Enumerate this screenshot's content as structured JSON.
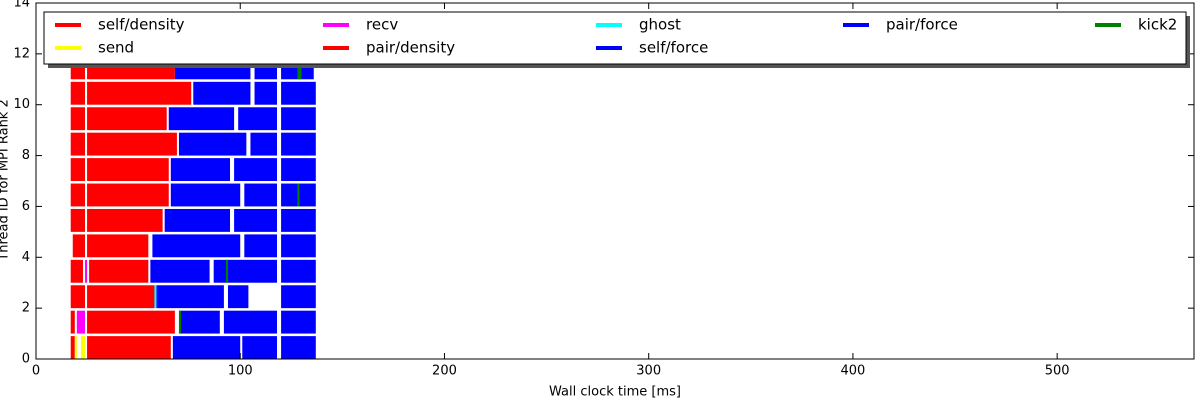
{
  "chart_data": {
    "type": "timeline",
    "xlabel": "Wall clock time [ms]",
    "ylabel": "Thread ID for MPI Rank 2",
    "xlim": [
      0,
      567
    ],
    "ylim": [
      0,
      14
    ],
    "xticks": [
      0,
      100,
      200,
      300,
      400,
      500
    ],
    "yticks": [
      0,
      2,
      4,
      6,
      8,
      10,
      12,
      14
    ],
    "legend": "upper center",
    "series": [
      {
        "name": "self/density",
        "color": "#ff0000",
        "thread": [
          0,
          1,
          2,
          3,
          4,
          5,
          6,
          7,
          8,
          9,
          10,
          11
        ],
        "start": [
          17,
          17,
          17,
          17,
          18,
          17,
          17,
          17,
          17,
          17,
          17,
          17
        ],
        "end": [
          19,
          19,
          24,
          23,
          24,
          24,
          24,
          24,
          24,
          24,
          24,
          24
        ]
      },
      {
        "name": "send",
        "color": "#ffff00",
        "thread": [
          0,
          0
        ],
        "start": [
          19,
          22
        ],
        "end": [
          20,
          24
        ]
      },
      {
        "name": "recv",
        "color": "#ff00ff",
        "thread": [
          1,
          3
        ],
        "start": [
          20,
          24
        ],
        "end": [
          24,
          25
        ]
      },
      {
        "name": "pair/density",
        "color": "#ff0000",
        "thread": [
          0,
          1,
          2,
          3,
          4,
          5,
          6,
          7,
          8,
          9,
          10,
          11
        ],
        "start": [
          25,
          25,
          25,
          26,
          25,
          25,
          25,
          25,
          25,
          25,
          25,
          25
        ],
        "end": [
          66,
          68,
          58,
          55,
          55,
          62,
          65,
          65,
          69,
          64,
          76,
          68
        ]
      },
      {
        "name": "ghost",
        "color": "#00ffff",
        "thread": [
          2
        ],
        "start": [
          58
        ],
        "end": [
          59
        ]
      },
      {
        "name": "self/force",
        "color": "#0000ff",
        "thread": [
          0,
          1,
          2,
          3,
          4,
          5,
          6,
          7,
          8,
          9,
          10,
          11
        ],
        "start": [
          67,
          70,
          59,
          56,
          57,
          63,
          66,
          66,
          70,
          65,
          77,
          68
        ],
        "end": [
          100,
          90,
          92,
          85,
          100,
          95,
          100,
          95,
          103,
          97,
          105,
          105
        ]
      },
      {
        "name": "pair/force",
        "color": "#0000ff",
        "thread": [
          0,
          0,
          1,
          1,
          2,
          2,
          3,
          3,
          4,
          4,
          5,
          5,
          6,
          6,
          7,
          7,
          8,
          8,
          9,
          9,
          10,
          10,
          11,
          11
        ],
        "start": [
          101,
          120,
          92,
          120,
          94,
          120,
          87,
          120,
          102,
          120,
          97,
          120,
          102,
          120,
          97,
          120,
          105,
          120,
          99,
          120,
          107,
          120,
          107,
          120
        ],
        "end": [
          118,
          137,
          118,
          137,
          104,
          137,
          118,
          137,
          118,
          137,
          118,
          137,
          118,
          137,
          118,
          137,
          118,
          137,
          118,
          137,
          118,
          137,
          118,
          136
        ]
      },
      {
        "name": "kick2",
        "color": "#008000",
        "thread": [
          1,
          3,
          6,
          11
        ],
        "start": [
          70,
          93,
          128,
          128
        ],
        "end": [
          71,
          94,
          129,
          130
        ]
      }
    ]
  }
}
